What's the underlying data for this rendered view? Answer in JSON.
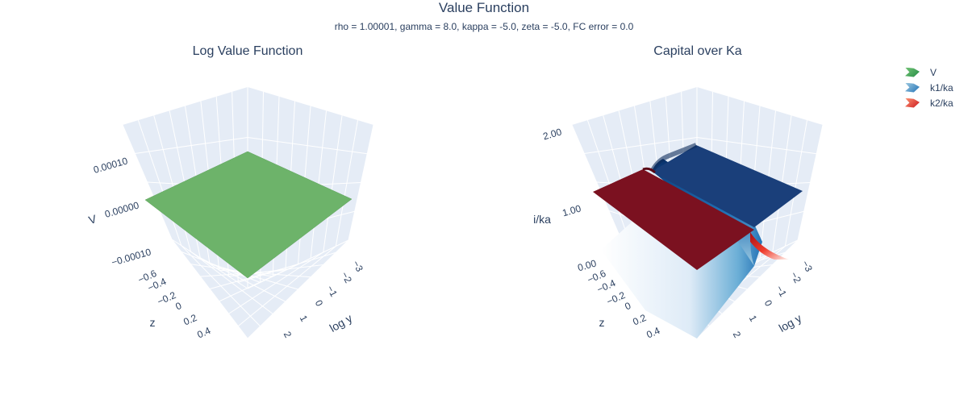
{
  "figure": {
    "title": "Value Function",
    "subtitle": "rho = 1.00001, gamma = 8.0, kappa = -5.0, zeta = -5.0, FC error = 0.0"
  },
  "legend": [
    {
      "name": "V",
      "color": "#2ca02c"
    },
    {
      "name": "k1/ka",
      "color": "#1f77b4"
    },
    {
      "name": "k2/ka",
      "color": "#d62728"
    }
  ],
  "chart_data": [
    {
      "type": "surface",
      "title": "Log Value Function",
      "xlabel": "log y",
      "ylabel": "z",
      "zlabel": "V",
      "xticks": [
        "−3",
        "−2",
        "−1",
        "0",
        "1",
        "2"
      ],
      "yticks": [
        "−0.6",
        "−0.4",
        "−0.2",
        "0",
        "0.2",
        "0.4"
      ],
      "zticks": [
        "−0.00010",
        "0.00000",
        "0.00010"
      ],
      "series": [
        {
          "name": "V",
          "colorscale": "Greens",
          "description_value": 0.0
        }
      ]
    },
    {
      "type": "surface",
      "title": "Capital over Ka",
      "xlabel": "log y",
      "ylabel": "z",
      "zlabel": "i/ka",
      "xticks": [
        "−3",
        "−2",
        "−1",
        "0",
        "1",
        "2"
      ],
      "yticks": [
        "−0.6",
        "−0.4",
        "−0.2",
        "0",
        "0.2",
        "0.4"
      ],
      "zticks": [
        "0.00",
        "1.00",
        "2.00"
      ],
      "zlim": [
        0,
        2
      ],
      "series": [
        {
          "name": "k1/ka",
          "colorscale": "Blues",
          "high_value": 1.9,
          "low_value": 0.0
        },
        {
          "name": "k2/ka",
          "colorscale": "Reds",
          "high_value": 1.9,
          "low_value": 0.0
        }
      ]
    }
  ]
}
